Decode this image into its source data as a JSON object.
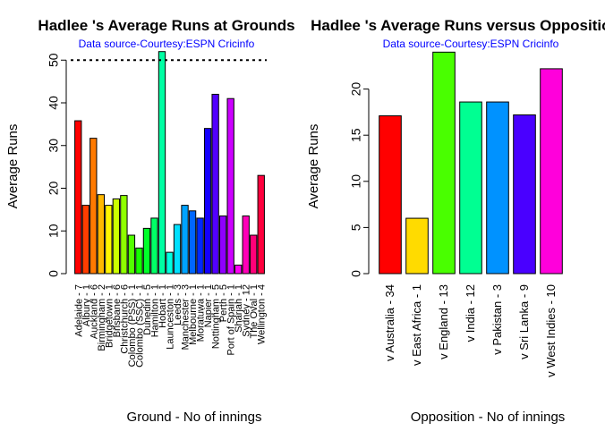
{
  "chart_data": [
    {
      "type": "bar",
      "title": "Hadlee 's Average Runs at Grounds",
      "subtitle": "Data source-Courtesy:ESPN Cricinfo",
      "xlabel": "Ground - No of innings",
      "ylabel": "Average Runs",
      "ylim": [
        0,
        52
      ],
      "yticks": [
        0,
        10,
        20,
        30,
        40,
        50
      ],
      "reference_line": 50,
      "categories": [
        "Adelaide - 7",
        "Albury - 1",
        "Auckland - 6",
        "Birmingham - 2",
        "Bridgetown - 1",
        "Brisbane - 6",
        "Christchurch - 6",
        "Colombo (PSS) - 1",
        "Colombo (SSC) - 1",
        "Dunedin - 5",
        "Hamilton - 1",
        "Hobart - 1",
        "Launceston - 1",
        "Leeds - 3",
        "Manchester - 3",
        "Melbourne - 1",
        "Moratuwa - 1",
        "Napier - 1",
        "Nottingham - 5",
        "Perth - 5",
        "Port of Spain - 1",
        "Sharjah - 1",
        "Sydney - 12",
        "The Oval - 1",
        "Wellington - 4"
      ],
      "values": [
        35.8,
        16,
        31.7,
        18.5,
        16,
        17.5,
        18.3,
        9,
        6,
        10.6,
        13,
        52,
        5,
        11.5,
        16,
        14.7,
        13,
        34,
        42,
        13.5,
        41,
        2,
        13.5,
        9,
        23
      ],
      "colors": [
        "#ff0000",
        "#ff3d00",
        "#ff7a00",
        "#ffb800",
        "#fff500",
        "#ccff00",
        "#8fff00",
        "#52ff00",
        "#14ff00",
        "#00ff29",
        "#00ff66",
        "#00ffa3",
        "#00ffe0",
        "#00e0ff",
        "#00a3ff",
        "#0066ff",
        "#0029ff",
        "#1400ff",
        "#5200ff",
        "#8f00ff",
        "#cc00ff",
        "#ff00f5",
        "#ff00b8",
        "#ff007a",
        "#ff003d"
      ]
    },
    {
      "type": "bar",
      "title": "Hadlee 's Average Runs versus Opposition",
      "subtitle": "Data source-Courtesy:ESPN Cricinfo",
      "xlabel": "Opposition - No of innings",
      "ylabel": "Average Runs",
      "ylim": [
        0,
        24
      ],
      "yticks": [
        0,
        5,
        10,
        15,
        20
      ],
      "categories": [
        "v Australia - 34",
        "v East Africa - 1",
        "v England - 13",
        "v India - 12",
        "v Pakistan - 3",
        "v Sri Lanka - 9",
        "v West Indies - 10"
      ],
      "values": [
        17.1,
        6,
        24,
        18.6,
        18.6,
        17.2,
        22.2
      ],
      "colors": [
        "#ff0000",
        "#ffdb00",
        "#49ff00",
        "#00ff92",
        "#0092ff",
        "#4900ff",
        "#ff00db"
      ]
    }
  ]
}
